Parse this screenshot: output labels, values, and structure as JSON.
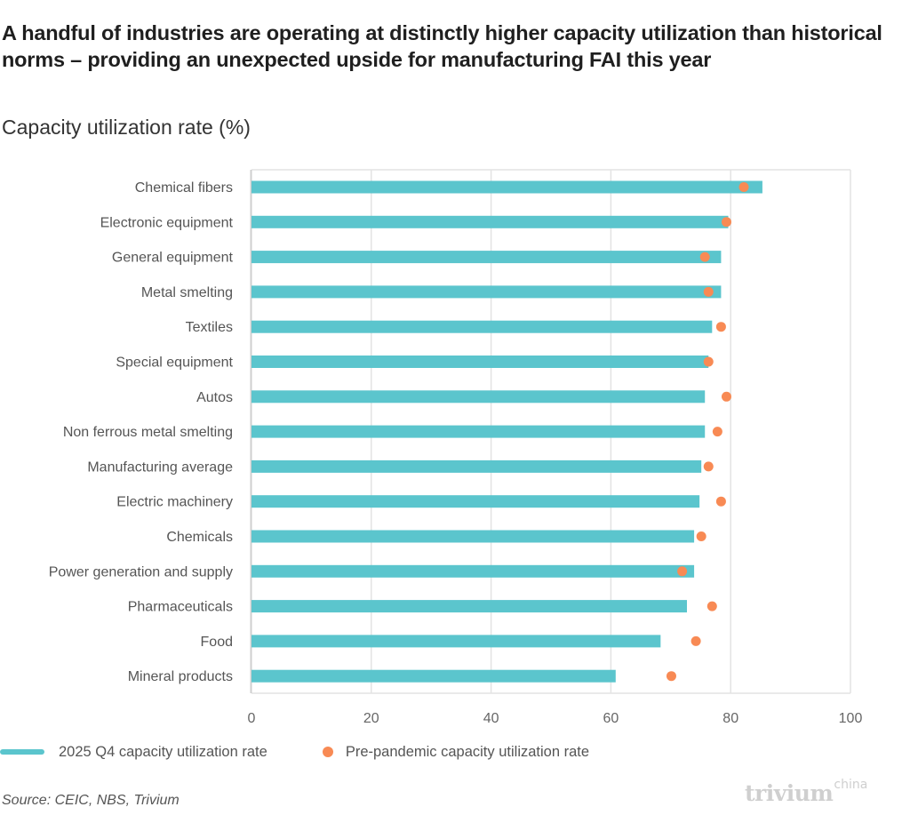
{
  "header": {
    "title": "A handful of industries are operating at distinctly higher capacity utilization than historical norms – providing an unexpected upside for manufacturing FAI this year",
    "subtitle": "Capacity utilization rate (%)"
  },
  "footer": {
    "source": "Source: CEIC, NBS, Trivium",
    "logo_main": "trivium",
    "logo_sup": "china"
  },
  "colors": {
    "bar": "#5bc5cd",
    "dot": "#f88a54",
    "grid": "#e3e3e3",
    "axis": "#cfcfcf"
  },
  "chart_data": {
    "type": "bar",
    "orientation": "horizontal",
    "title": "A handful of industries are operating at distinctly higher capacity utilization than historical norms – providing an unexpected upside for manufacturing FAI this year",
    "subtitle": "Capacity utilization rate (%)",
    "xlabel": "",
    "ylabel": "",
    "xlim": [
      0,
      100
    ],
    "xticks": [
      0,
      20,
      40,
      60,
      80,
      100
    ],
    "grid": true,
    "legend_position": "bottom-left",
    "categories": [
      "Chemical fibers",
      "Electronic equipment",
      "General equipment",
      "Metal smelting",
      "Textiles",
      "Special equipment",
      "Autos",
      "Non ferrous metal smelting",
      "Manufacturing average",
      "Electric machinery",
      "Chemicals",
      "Power generation and supply",
      "Pharmaceuticals",
      "Food",
      "Mineral products"
    ],
    "series": [
      {
        "name": "2025 Q4 capacity utilization rate",
        "mark": "bar",
        "values": [
          85.3,
          79.6,
          78.4,
          78.4,
          76.9,
          76.3,
          75.7,
          75.7,
          75.1,
          74.8,
          73.9,
          73.9,
          72.7,
          68.3,
          60.8
        ]
      },
      {
        "name": "Pre-pandemic capacity utilization rate",
        "mark": "dot",
        "values": [
          82.2,
          79.3,
          75.7,
          76.3,
          78.4,
          76.3,
          79.3,
          77.8,
          76.3,
          78.4,
          75.1,
          71.9,
          76.9,
          74.2,
          70.1
        ]
      }
    ]
  }
}
